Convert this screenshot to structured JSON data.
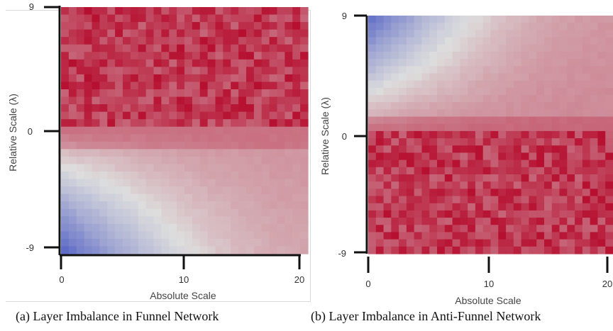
{
  "chart_data": [
    {
      "type": "heatmap",
      "caption": "(a) Layer Imbalance in Funnel Network",
      "xlabel": "Absolute Scale",
      "ylabel": "Relative Scale (λ)",
      "xlim": [
        0,
        21
      ],
      "ylim": [
        -9,
        9
      ],
      "xticks": [
        "0",
        "10",
        "20"
      ],
      "yticks": [
        "9",
        "0",
        "-9"
      ],
      "colormap": "coolwarm",
      "pattern": "red for λ ≥ 0, blue-to-light-red gradient for λ < 0 (bluest at low absolute scale, λ = -9)"
    },
    {
      "type": "heatmap",
      "caption": "(b) Layer Imbalance in Anti-Funnel Network",
      "xlabel": "Absolute Scale",
      "ylabel": "Relative Scale (λ)",
      "xlim": [
        0,
        21
      ],
      "ylim": [
        -9,
        9
      ],
      "xticks": [
        "0",
        "10",
        "20"
      ],
      "yticks": [
        "9",
        "0",
        "-9"
      ],
      "colormap": "coolwarm",
      "pattern": "red for λ ≤ 0, blue-to-light-red gradient for λ > 0 (bluest at low absolute scale, λ = 9)"
    }
  ],
  "colors": {
    "blue": "#3b4cc0",
    "neutral": "#dddddd",
    "red": "#b40426"
  }
}
